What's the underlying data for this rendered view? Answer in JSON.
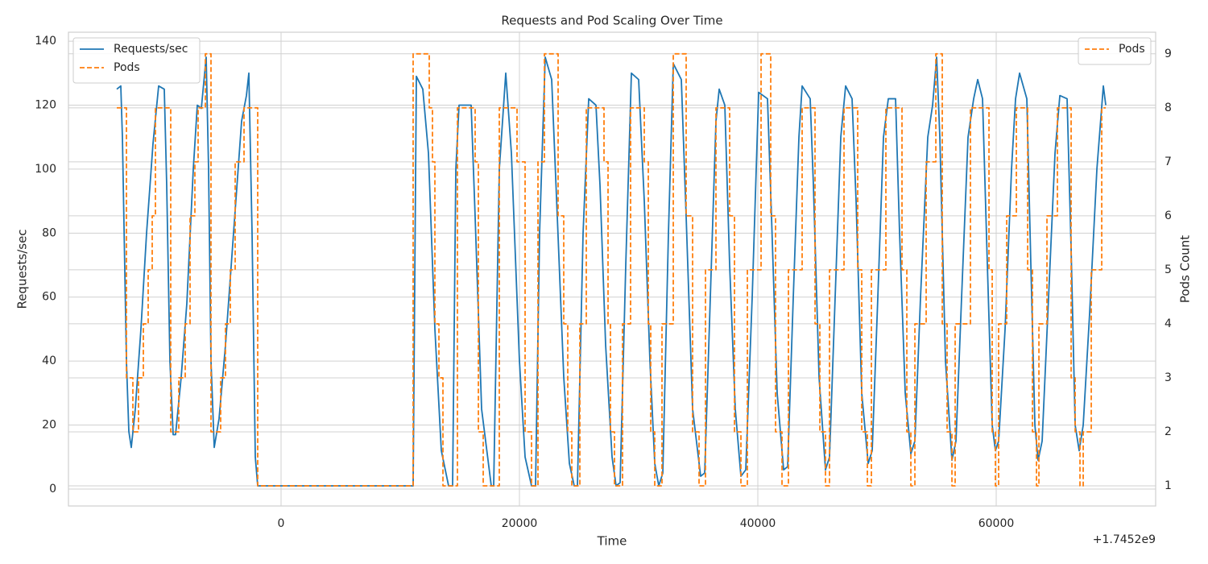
{
  "chart_data": {
    "type": "line",
    "title": "Requests and Pod Scaling Over Time",
    "xlabel": "Time",
    "ylabel": "Requests/sec",
    "y2label": "Pods Count",
    "x_offset_label": "+1.7452e9",
    "xlim": [
      -17838,
      73378
    ],
    "xticks": [
      0,
      20000,
      40000,
      60000
    ],
    "ylim": [
      -5.3,
      142.8
    ],
    "yticks": [
      0,
      20,
      40,
      60,
      80,
      100,
      120,
      140
    ],
    "y2lim": [
      0.627,
      9.4
    ],
    "y2ticks": [
      1,
      2,
      3,
      4,
      5,
      6,
      7,
      8,
      9
    ],
    "grid": true,
    "legend": "upper left",
    "legend2": "upper right",
    "series": [
      {
        "name": "Requests/sec",
        "color": "#1f77b4",
        "linestyle": "solid",
        "drawstyle": "default",
        "axis": "y",
        "legend": "legend",
        "x": [
          -13784,
          -13446,
          -13311,
          -12973,
          -12771,
          -12568,
          -12230,
          -11757,
          -11284,
          -10744,
          -10271,
          -9798,
          -9595,
          -9325,
          -9054,
          -8852,
          -8379,
          -7906,
          -7365,
          -7027,
          -6689,
          -6284,
          -6081,
          -5879,
          -5608,
          -5203,
          -4662,
          -3987,
          -3311,
          -2906,
          -2703,
          -2433,
          -2162,
          -1960,
          11081,
          11352,
          11892,
          12365,
          12906,
          13446,
          14055,
          14392,
          14663,
          14933,
          15947,
          16284,
          16825,
          17636,
          17838,
          18311,
          18852,
          19325,
          20000,
          20474,
          21014,
          21352,
          21690,
          22163,
          22704,
          23177,
          23717,
          24190,
          24595,
          24866,
          25339,
          25812,
          26420,
          26758,
          27231,
          27771,
          28109,
          28447,
          28920,
          29393,
          30001,
          30474,
          30947,
          31352,
          31690,
          32028,
          32501,
          32907,
          33582,
          33988,
          34528,
          35204,
          35542,
          36015,
          36488,
          36758,
          37231,
          37636,
          38109,
          38582,
          38988,
          39528,
          40069,
          40812,
          41150,
          41623,
          42164,
          42502,
          42975,
          43448,
          43718,
          44393,
          44664,
          45137,
          45677,
          46015,
          46488,
          46961,
          47367,
          47907,
          48245,
          48718,
          49259,
          49596,
          50069,
          50542,
          50948,
          51556,
          51894,
          52367,
          52840,
          53178,
          53651,
          54259,
          54664,
          55002,
          55272,
          55745,
          56286,
          56624,
          57097,
          57637,
          58110,
          58448,
          58853,
          59259,
          59664,
          59935,
          60205,
          60745,
          61286,
          61624,
          61962,
          62570,
          62908,
          63246,
          63516,
          63854,
          64394,
          64935,
          65340,
          65948,
          66286,
          66624,
          66962,
          67300,
          67840,
          68448,
          68989,
          69192
        ],
        "values": [
          125,
          126,
          110,
          40,
          18,
          13,
          25,
          50,
          80,
          108,
          126,
          125,
          95,
          40,
          17,
          17,
          35,
          58,
          100,
          120,
          119,
          135,
          100,
          40,
          13,
          22,
          45,
          80,
          115,
          123,
          130,
          80,
          10,
          1,
          1,
          129,
          125,
          105,
          50,
          12,
          1,
          1,
          100,
          120,
          120,
          85,
          25,
          1,
          1,
          100,
          130,
          105,
          40,
          10,
          1,
          1,
          80,
          135,
          128,
          85,
          35,
          8,
          1,
          1,
          80,
          122,
          120,
          95,
          45,
          10,
          1,
          2,
          70,
          130,
          128,
          90,
          40,
          8,
          1,
          5,
          80,
          133,
          128,
          85,
          25,
          4,
          5,
          60,
          115,
          125,
          120,
          70,
          25,
          4,
          6,
          60,
          124,
          122,
          85,
          30,
          6,
          7,
          60,
          110,
          126,
          122,
          95,
          35,
          6,
          10,
          60,
          110,
          126,
          122,
          90,
          30,
          8,
          12,
          60,
          110,
          122,
          122,
          80,
          30,
          11,
          15,
          60,
          110,
          120,
          135,
          110,
          40,
          9,
          15,
          60,
          110,
          122,
          128,
          122,
          70,
          20,
          12,
          15,
          50,
          100,
          122,
          130,
          122,
          70,
          20,
          9,
          15,
          60,
          105,
          123,
          122,
          75,
          20,
          12,
          20,
          55,
          100,
          126,
          120
        ]
      },
      {
        "name": "Pods",
        "color": "#ff7f0e",
        "linestyle": "dashed",
        "drawstyle": "steps-post",
        "axis": "y2",
        "legend": "both",
        "x": [
          -13784,
          -12973,
          -12433,
          -11960,
          -11554,
          -11149,
          -10811,
          -10541,
          -9257,
          -8581,
          -8041,
          -7635,
          -7230,
          -6960,
          -6352,
          -5879,
          -5068,
          -4662,
          -4257,
          -3851,
          -3108,
          -1960,
          11081,
          12433,
          12703,
          12906,
          13244,
          13582,
          14798,
          16284,
          16555,
          16960,
          18311,
          19798,
          20474,
          21014,
          21555,
          22095,
          23244,
          23717,
          24055,
          24393,
          25068,
          25609,
          27095,
          27433,
          27636,
          27974,
          28650,
          29325,
          30474,
          30812,
          31015,
          31352,
          31960,
          32907,
          33988,
          34528,
          35069,
          35609,
          36488,
          37636,
          38042,
          38582,
          39123,
          40272,
          41083,
          41488,
          42029,
          42569,
          43718,
          44799,
          45204,
          45677,
          46015,
          47231,
          48380,
          48718,
          49191,
          49529,
          50745,
          52096,
          52502,
          52840,
          53178,
          54124,
          54935,
          55475,
          55880,
          56286,
          56556,
          57840,
          59394,
          59664,
          59935,
          60205,
          60881,
          61692,
          62638,
          63043,
          63381,
          63584,
          64259,
          65137,
          66286,
          66624,
          67029,
          67300,
          67975,
          68854,
          69192
        ],
        "values": [
          8,
          3,
          2,
          3,
          4,
          5,
          6,
          8,
          2,
          3,
          4,
          6,
          7,
          8,
          9,
          2,
          3,
          4,
          5,
          7,
          8,
          1,
          9,
          8,
          7,
          4,
          3,
          1,
          8,
          7,
          2,
          1,
          8,
          7,
          2,
          1,
          7,
          9,
          6,
          4,
          2,
          1,
          4,
          8,
          7,
          4,
          2,
          1,
          4,
          8,
          7,
          4,
          2,
          1,
          4,
          9,
          6,
          2,
          1,
          5,
          8,
          6,
          2,
          1,
          5,
          9,
          6,
          2,
          1,
          5,
          8,
          4,
          2,
          1,
          5,
          8,
          5,
          2,
          1,
          5,
          8,
          5,
          2,
          1,
          4,
          7,
          9,
          4,
          2,
          1,
          4,
          8,
          5,
          2,
          1,
          4,
          6,
          8,
          5,
          2,
          1,
          4,
          6,
          8,
          3,
          2,
          1,
          2,
          5,
          8,
          8
        ]
      }
    ]
  }
}
